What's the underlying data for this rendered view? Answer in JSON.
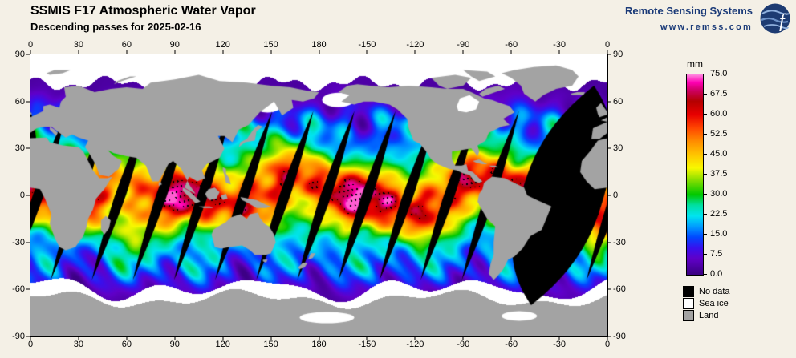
{
  "header": {
    "title": "SSMIS F17 Atmospheric Water Vapor",
    "subtitle": "Descending passes for 2025-02-16"
  },
  "branding": {
    "name": "Remote Sensing Systems",
    "url": "www.remss.com"
  },
  "map": {
    "lon_ticks": [
      "0",
      "30",
      "60",
      "90",
      "120",
      "150",
      "180",
      "-150",
      "-120",
      "-90",
      "-60",
      "-30",
      "0"
    ],
    "lat_ticks": [
      "90",
      "60",
      "30",
      "0",
      "-30",
      "-60",
      "-90"
    ]
  },
  "colorbar": {
    "unit": "mm",
    "min": 0,
    "max": 75,
    "tick_labels": [
      "75.0",
      "67.5",
      "60.0",
      "52.5",
      "45.0",
      "37.5",
      "30.0",
      "22.5",
      "15.0",
      "7.5",
      "0.0"
    ],
    "stops": [
      {
        "value": 0,
        "color": "#3a0080"
      },
      {
        "value": 6,
        "color": "#6000c8"
      },
      {
        "value": 10,
        "color": "#3810ee"
      },
      {
        "value": 14,
        "color": "#0048ff"
      },
      {
        "value": 18,
        "color": "#009cff"
      },
      {
        "value": 22,
        "color": "#00e4f0"
      },
      {
        "value": 26,
        "color": "#00dfa0"
      },
      {
        "value": 30,
        "color": "#00c800"
      },
      {
        "value": 35,
        "color": "#7cdc00"
      },
      {
        "value": 40,
        "color": "#f8f800"
      },
      {
        "value": 45,
        "color": "#ffc400"
      },
      {
        "value": 50,
        "color": "#ff8c00"
      },
      {
        "value": 55,
        "color": "#ff4600"
      },
      {
        "value": 60,
        "color": "#e80000"
      },
      {
        "value": 65,
        "color": "#b40000"
      },
      {
        "value": 69,
        "color": "#cc0060"
      },
      {
        "value": 72,
        "color": "#ff00b4"
      },
      {
        "value": 75,
        "color": "#ff8ce0"
      }
    ]
  },
  "legend": {
    "items": [
      {
        "label": "No data",
        "color": "#000000"
      },
      {
        "label": "Sea ice",
        "color": "#ffffff"
      },
      {
        "label": "Land",
        "color": "#a3a3a3"
      }
    ]
  },
  "colors": {
    "background": "#f4f0e6",
    "brand": "#1a3a78",
    "land": "#a3a3a3",
    "sea_ice": "#ffffff",
    "no_data": "#000000"
  }
}
